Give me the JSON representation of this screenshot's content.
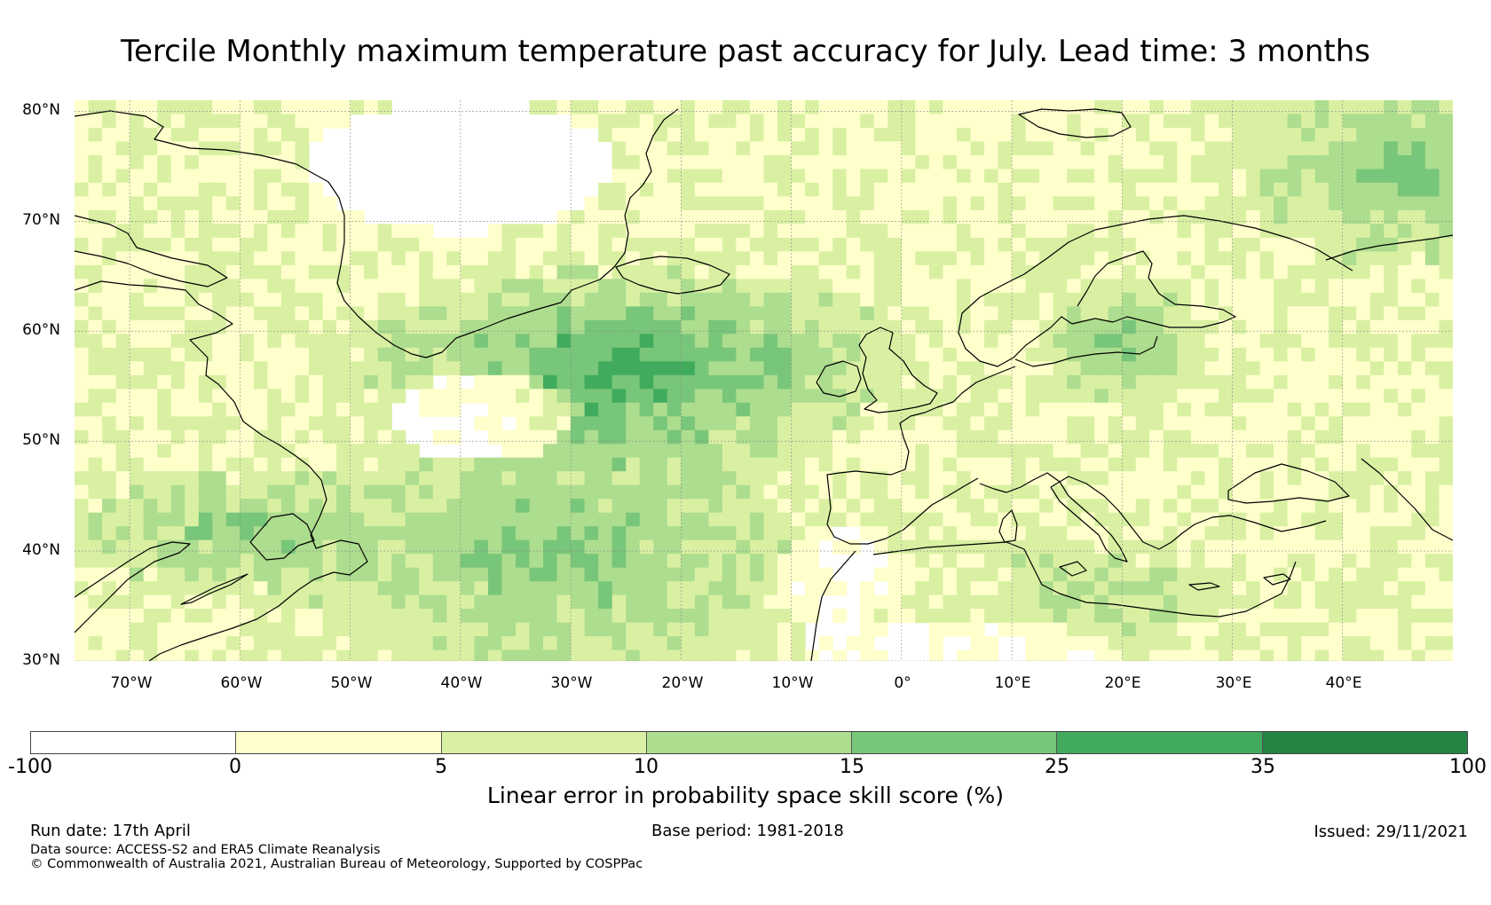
{
  "title": "Tercile Monthly maximum temperature past accuracy for July. Lead time: 3 months",
  "map": {
    "extent": {
      "lon": [
        -75,
        50
      ],
      "lat": [
        30,
        81
      ]
    },
    "lat_labels": [
      {
        "value": 80,
        "text": "80°N"
      },
      {
        "value": 70,
        "text": "70°N"
      },
      {
        "value": 60,
        "text": "60°N"
      },
      {
        "value": 50,
        "text": "50°N"
      },
      {
        "value": 40,
        "text": "40°N"
      },
      {
        "value": 30,
        "text": "30°N"
      }
    ],
    "lon_labels": [
      {
        "value": -70,
        "text": "70°W"
      },
      {
        "value": -60,
        "text": "60°W"
      },
      {
        "value": -50,
        "text": "50°W"
      },
      {
        "value": -40,
        "text": "40°W"
      },
      {
        "value": -30,
        "text": "30°W"
      },
      {
        "value": -20,
        "text": "20°W"
      },
      {
        "value": -10,
        "text": "10°W"
      },
      {
        "value": 0,
        "text": "0°"
      },
      {
        "value": 10,
        "text": "10°E"
      },
      {
        "value": 20,
        "text": "20°E"
      },
      {
        "value": 30,
        "text": "30°E"
      },
      {
        "value": 40,
        "text": "40°E"
      }
    ],
    "grid": true
  },
  "colorbar": {
    "ticks": [
      "-100",
      "0",
      "5",
      "10",
      "15",
      "25",
      "35",
      "100"
    ],
    "colors": [
      "#ffffff",
      "#ffffcc",
      "#d9f0a3",
      "#addd8e",
      "#78c679",
      "#41ab5d",
      "#238443"
    ],
    "label": "Linear error in probability space skill score (%)"
  },
  "footer": {
    "run_date": "Run date: 17th April",
    "base_period": "Base period: 1981-2018",
    "issued": "Issued: 29/11/2021",
    "data_source": "Data source: ACCESS-S2 and ERA5 Climate Reanalysis",
    "copyright": "© Commonwealth of Australia 2021, Australian Bureau of Meteorology, Supported by COSPPac"
  }
}
